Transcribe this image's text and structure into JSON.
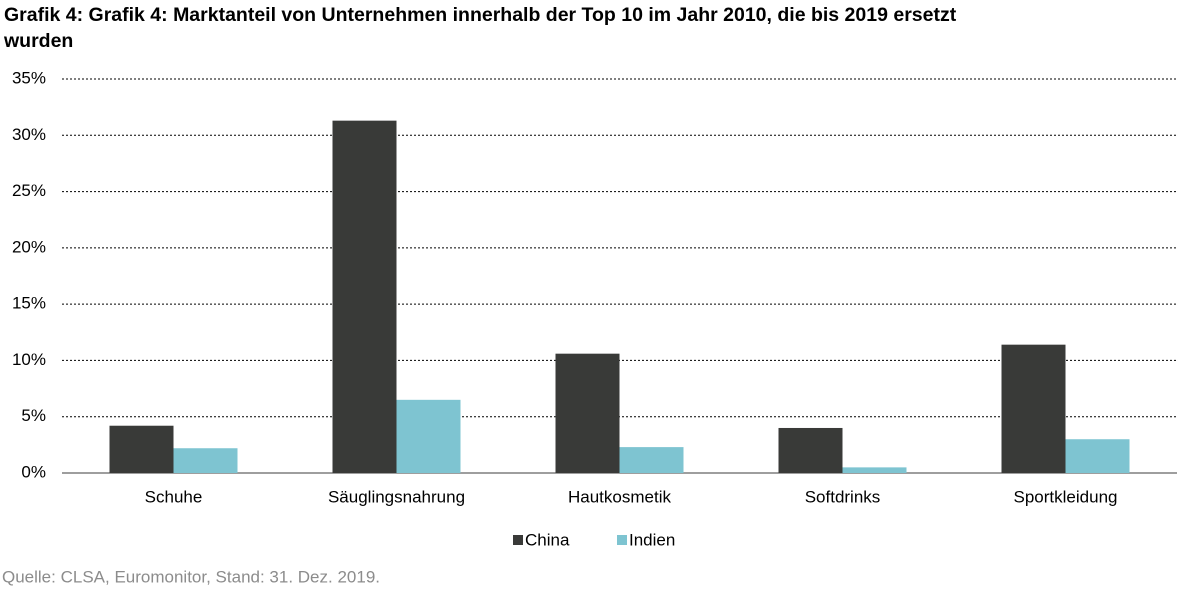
{
  "chart_data": {
    "type": "bar",
    "title": "Grafik 4: Grafik 4: Marktanteil von Unternehmen innerhalb der Top 10 im Jahr 2010, die bis 2019 ersetzt wurden",
    "categories": [
      "Schuhe",
      "Säuglingsnahrung",
      "Hautkosmetik",
      "Softdrinks",
      "Sportkleidung"
    ],
    "series": [
      {
        "name": "China",
        "color": "#393a38",
        "values": [
          4.2,
          31.3,
          10.6,
          4.0,
          11.4
        ]
      },
      {
        "name": "Indien",
        "color": "#7ec4d1",
        "values": [
          2.2,
          6.5,
          2.3,
          0.5,
          3.0
        ]
      }
    ],
    "ylim": [
      0,
      35
    ],
    "yticks": [
      {
        "value": 0,
        "label": "0%"
      },
      {
        "value": 5,
        "label": "5%"
      },
      {
        "value": 10,
        "label": "10%"
      },
      {
        "value": 15,
        "label": "15%"
      },
      {
        "value": 20,
        "label": "20%"
      },
      {
        "value": 25,
        "label": "25%"
      },
      {
        "value": 30,
        "label": "30%"
      },
      {
        "value": 35,
        "label": "35%"
      }
    ],
    "grid": true,
    "legend": "bottom",
    "source": "Quelle: CLSA, Euromonitor, Stand: 31. Dez. 2019."
  }
}
